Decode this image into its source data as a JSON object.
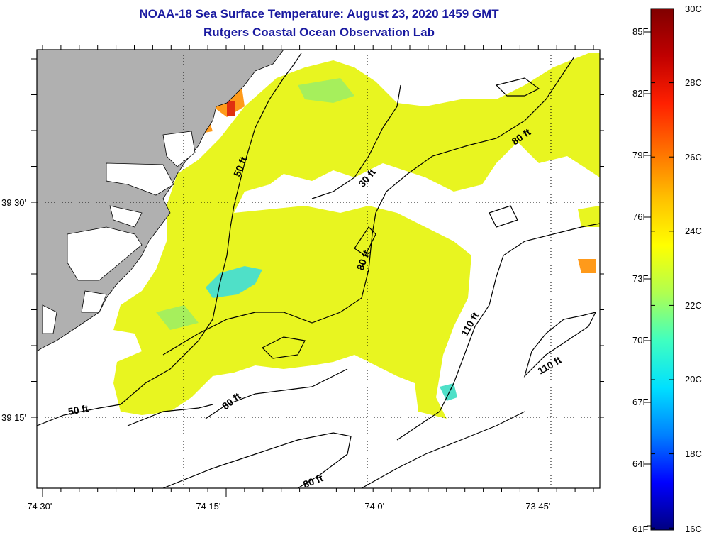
{
  "header": {
    "title": "NOAA-18 Sea Surface Temperature:  August 23, 2020 1459 GMT",
    "subtitle": "Rutgers Coastal Ocean Observation Lab"
  },
  "map": {
    "lon_labels": [
      "-74 30'",
      "-74 15'",
      "-74 0'",
      "-73 45'"
    ],
    "lat_labels": [
      "39 30'",
      "39 15'"
    ],
    "contour_labels": [
      "50 ft",
      "30 ft",
      "80 ft",
      "80 ft",
      "110 ft",
      "110 ft",
      "50 ft",
      "80 ft",
      "80 ft"
    ]
  },
  "colorbar": {
    "fahrenheit_labels": [
      "85F",
      "82F",
      "79F",
      "76F",
      "73F",
      "70F",
      "67F",
      "64F",
      "61F"
    ],
    "celsius_labels": [
      "30C",
      "28C",
      "26C",
      "24C",
      "22C",
      "20C",
      "18C",
      "16C"
    ],
    "range_c": [
      16,
      30
    ],
    "colors": [
      "#000080",
      "#0000ff",
      "#0080ff",
      "#00e0ff",
      "#40ffc0",
      "#b0ff50",
      "#ffff00",
      "#ffc000",
      "#ff7000",
      "#ff2000",
      "#c00000",
      "#800000"
    ]
  },
  "colors": {
    "land": "#b0b0b0",
    "sst_yellow": "#e8f520",
    "sst_yellowgreen": "#cdf23a",
    "sst_green": "#a6ef5c",
    "sst_cyan": "#4fe0c8",
    "sst_orange": "#ff9a1a",
    "sst_red": "#e03010",
    "title": "#1a1aa0"
  }
}
